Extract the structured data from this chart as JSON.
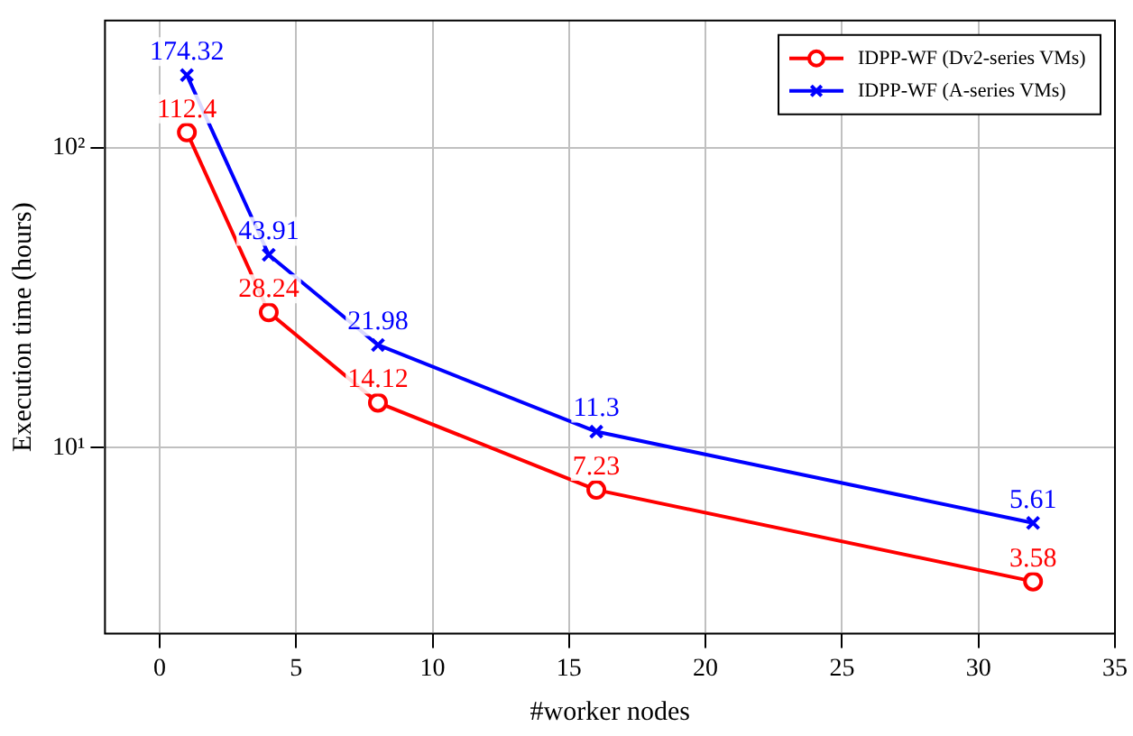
{
  "chart_data": {
    "type": "line",
    "xlabel": "#worker nodes",
    "ylabel": "Execution time (hours)",
    "log": "y",
    "xlim": [
      -2,
      35
    ],
    "xticks": [
      0,
      5,
      10,
      15,
      20,
      25,
      30,
      35
    ],
    "ylim": [
      2.4,
      265
    ],
    "yticks": [
      {
        "value": 10,
        "label": "10¹"
      },
      {
        "value": 100,
        "label": "10²"
      }
    ],
    "grid": true,
    "legend": "top right",
    "data_labels": true,
    "line_style": "solid",
    "series": [
      {
        "name": "IDPP-WF (Dv2-series VMs)",
        "color": "#ff0000",
        "marker": "circle",
        "x": [
          1,
          4,
          8,
          16,
          32
        ],
        "values": [
          112.4,
          28.24,
          14.12,
          7.23,
          3.58
        ]
      },
      {
        "name": "IDPP-WF (A-series VMs)",
        "color": "#0000ff",
        "marker": "cross",
        "x": [
          1,
          4,
          8,
          16,
          32
        ],
        "values": [
          174.32,
          43.91,
          21.98,
          11.3,
          5.61
        ]
      }
    ]
  }
}
